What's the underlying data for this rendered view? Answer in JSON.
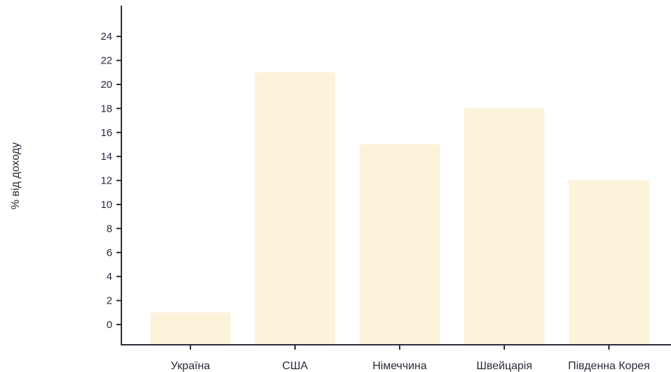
{
  "chart_data": {
    "type": "bar",
    "title": "",
    "xlabel": "",
    "ylabel": "% від доходу",
    "categories": [
      "Україна",
      "США",
      "Німеччина",
      "Швейцарія",
      "Південна Корея"
    ],
    "values": [
      1,
      21,
      15,
      18,
      12
    ],
    "ylim": [
      0,
      24
    ],
    "yticks": [
      0,
      2,
      4,
      6,
      8,
      10,
      12,
      14,
      16,
      18,
      20,
      22,
      24
    ],
    "grid": false,
    "legend": "none"
  },
  "colors": {
    "bar": "#fdf2da",
    "axis": "#2c2a3a",
    "text": "#2c2a3a",
    "background": "#ffffff"
  }
}
